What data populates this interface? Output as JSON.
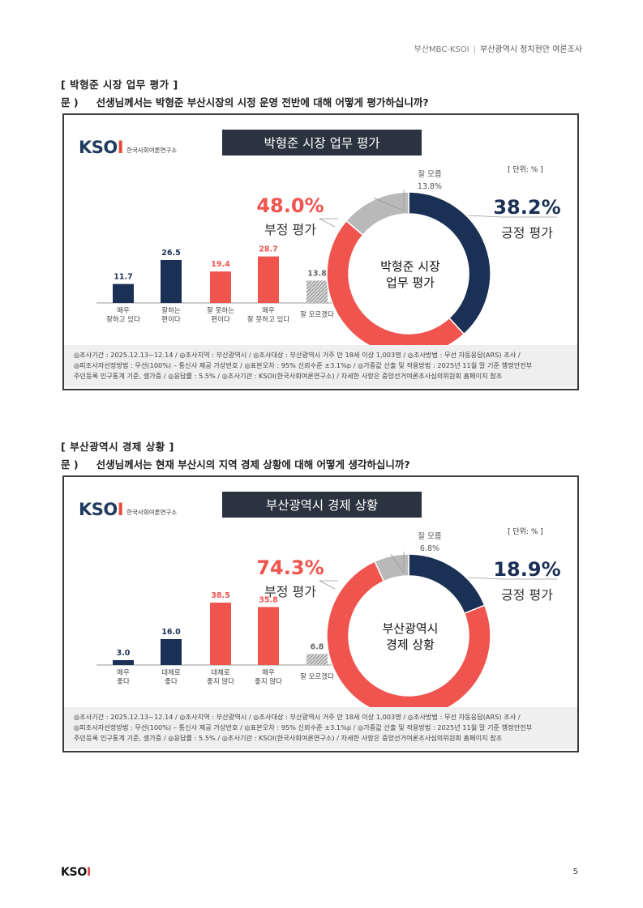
{
  "header": {
    "left": "부산MBC-KSOI",
    "sep": "|",
    "right": "부산광역시 정치현안 여론조사"
  },
  "sections": [
    {
      "title": "[ 박형준 시장 업무 평가 ]",
      "q_prefix": "문 )",
      "question": "선생님께서는 박형준 부산시장의 시정 운영 전반에 대해 어떻게 평가하십니까?",
      "panel_title": "박형준 시장 업무 평가",
      "unit": "[ 단위: % ]",
      "center_label": [
        "박형준 시장",
        "업무 평가"
      ],
      "neg_pct": "48.0%",
      "neg_label": "부정 평가",
      "pos_pct": "38.2%",
      "pos_label": "긍정 평가",
      "dk_label": "잘 모름",
      "dk_pct": "13.8%",
      "footer": [
        "◎조사기간 : 2025.12.13~12.14 / ◎조사지역 : 부산광역시 / ◎조사대상 : 부산광역시 거주 만 18세 이상 1,003명 / ◎조사방법 : 무선 자동응답(ARS) 조사 /",
        "◎피조사자선정방법 : 무선(100%) – 통신사 제공 가상번호 / ◎표본오차 : 95% 신뢰수준 ±3.1%p / ◎가중값 산출 및 적용방법 : 2025년 11월 말 기준 행정안전부",
        "주민등록 인구통계 기준, 셀가중 / ◎응답률 : 5.5% / ◎조사기관 : KSOI(한국사회여론연구소) / 자세한 사항은 중앙선거여론조사심의위원회 홈페이지 참조"
      ]
    },
    {
      "title": "[ 부산광역시 경제 상황 ]",
      "q_prefix": "문 )",
      "question": "선생님께서는 현재 부산시의 지역 경제 상황에 대해 어떻게 생각하십니까?",
      "panel_title": "부산광역시 경제 상황",
      "unit": "[ 단위: % ]",
      "center_label": [
        "부산광역시",
        "경제 상황"
      ],
      "neg_pct": "74.3%",
      "neg_label": "부정 평가",
      "pos_pct": "18.9%",
      "pos_label": "긍정 평가",
      "dk_label": "잘 모름",
      "dk_pct": "6.8%",
      "footer": [
        "◎조사기간 : 2025.12.13~12.14 / ◎조사지역 : 부산광역시 / ◎조사대상 : 부산광역시 거주 만 18세 이상 1,003명 / ◎조사방법 : 무선 자동응답(ARS) 조사 /",
        "◎피조사자선정방법 : 무선(100%) – 통신사 제공 가상번호 / ◎표본오차 : 95% 신뢰수준 ±3.1%p / ◎가중값 산출 및 적용방법 : 2025년 11월 말 기준 행정안전부",
        "주민등록 인구통계 기준, 셀가중 / ◎응답률 : 5.5% / ◎조사기관 : KSOI(한국사회여론연구소) / 자세한 사항은 중앙선거여론조사심의위원회 홈페이지 참조"
      ]
    }
  ],
  "logo": {
    "word_main": "KSO",
    "word_i": "I",
    "sub": "한국사회여론연구소"
  },
  "page_number": "5",
  "colors": {
    "navy": "#1b3055",
    "red": "#f0544f",
    "gray": "#b9b9b9",
    "pos_text": "#1b3055",
    "neg_text": "#f0544f"
  },
  "chart_data": [
    {
      "type": "bar",
      "categories": [
        [
          "매우",
          "잘하고 있다"
        ],
        [
          "잘하는",
          "편이다"
        ],
        [
          "잘 못하는",
          "편이다"
        ],
        [
          "매우",
          "잘 못하고 있다"
        ],
        [
          "잘 모르겠다"
        ]
      ],
      "values": [
        11.7,
        26.5,
        19.4,
        28.7,
        13.8
      ],
      "colors": [
        "navy",
        "navy",
        "red",
        "red",
        "hatch"
      ],
      "donut": {
        "positive": 38.2,
        "negative": 48.0,
        "dont_know": 13.8
      }
    },
    {
      "type": "bar",
      "categories": [
        [
          "매우",
          "좋다"
        ],
        [
          "대체로",
          "좋다"
        ],
        [
          "대체로",
          "좋지 않다"
        ],
        [
          "매우",
          "좋지 않다"
        ],
        [
          "잘 모르겠다"
        ]
      ],
      "values": [
        3.0,
        16.0,
        38.5,
        35.8,
        6.8
      ],
      "colors": [
        "navy",
        "navy",
        "red",
        "red",
        "hatch"
      ],
      "donut": {
        "positive": 18.9,
        "negative": 74.3,
        "dont_know": 6.8
      }
    }
  ]
}
